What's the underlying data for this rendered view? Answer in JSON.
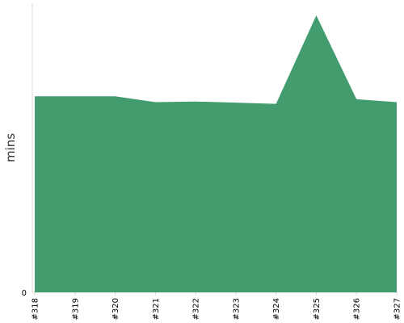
{
  "chart_data": {
    "type": "area",
    "title": "",
    "xlabel": "",
    "ylabel": "mins",
    "categories": [
      "#318",
      "#319",
      "#320",
      "#321",
      "#322",
      "#323",
      "#324",
      "#325",
      "#326",
      "#327"
    ],
    "values": [
      33.9,
      33.9,
      33.9,
      32.9,
      33.0,
      32.8,
      32.6,
      47.9,
      33.4,
      32.9
    ],
    "y_ticks": [
      "0"
    ],
    "ylim": [
      0,
      50
    ],
    "grid": false,
    "legend": "none",
    "colors": {
      "area_fill": "#439c6e",
      "axis_line": "#d8d8d8"
    }
  }
}
